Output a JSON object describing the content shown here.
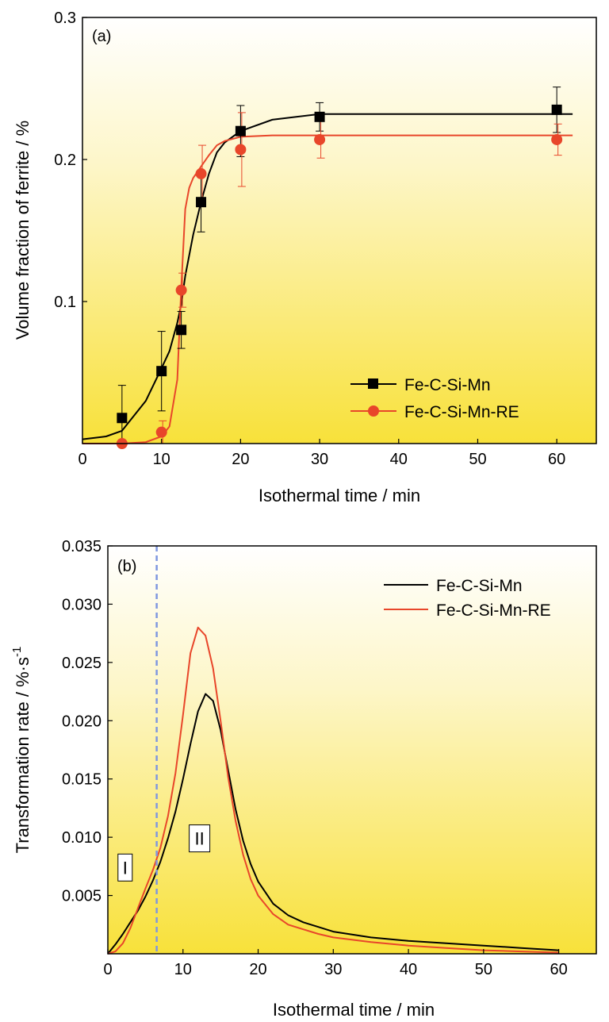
{
  "chart_data": [
    {
      "panel_label": "(a)",
      "type": "scatter",
      "xlabel": "Isothermal time / min",
      "ylabel": "Volume fraction of ferrite / %",
      "xlim": [
        0,
        65
      ],
      "ylim": [
        0,
        0.3
      ],
      "xticks": [
        "0",
        "10",
        "20",
        "30",
        "40",
        "50",
        "60"
      ],
      "yticks": [
        "0.1",
        "0.2",
        "0.3"
      ],
      "ytick_values": [
        0.1,
        0.2,
        0.3
      ],
      "legend_position": "bottom-right",
      "background": "gradient white to yellow",
      "series": [
        {
          "name": "Fe-C-Si-Mn",
          "color": "#000000",
          "marker": "square",
          "points": [
            {
              "x": 5,
              "y": 0.018,
              "err": 0.023
            },
            {
              "x": 10,
              "y": 0.051,
              "err": 0.028
            },
            {
              "x": 12.5,
              "y": 0.08,
              "err": 0.013
            },
            {
              "x": 15,
              "y": 0.17,
              "err": 0.021
            },
            {
              "x": 20,
              "y": 0.22,
              "err": 0.018
            },
            {
              "x": 30,
              "y": 0.23,
              "err": 0.01
            },
            {
              "x": 60,
              "y": 0.235,
              "err": 0.016
            }
          ],
          "fit_curve": {
            "x": [
              0,
              3,
              5,
              8,
              10,
              11,
              12,
              12.5,
              13,
              14,
              15,
              16,
              17,
              18,
              20,
              24,
              30,
              40,
              50,
              62
            ],
            "y": [
              0.003,
              0.005,
              0.009,
              0.03,
              0.053,
              0.065,
              0.085,
              0.098,
              0.118,
              0.147,
              0.17,
              0.19,
              0.205,
              0.212,
              0.22,
              0.228,
              0.232,
              0.232,
              0.232,
              0.232
            ]
          }
        },
        {
          "name": "Fe-C-Si-Mn-RE",
          "color": "#e8462a",
          "marker": "circle",
          "points": [
            {
              "x": 5,
              "y": 0.0,
              "err": 0.0
            },
            {
              "x": 10,
              "y": 0.008,
              "err": 0.008
            },
            {
              "x": 12.5,
              "y": 0.108,
              "err": 0.012
            },
            {
              "x": 15,
              "y": 0.19,
              "err": 0.02
            },
            {
              "x": 20,
              "y": 0.207,
              "err": 0.026
            },
            {
              "x": 30,
              "y": 0.214,
              "err": 0.013
            },
            {
              "x": 60,
              "y": 0.214,
              "err": 0.011
            }
          ],
          "fit_curve": {
            "x": [
              0,
              3,
              5,
              8,
              10,
              11,
              12,
              12.5,
              13,
              13.5,
              14,
              15,
              16,
              17,
              18,
              20,
              24,
              30,
              40,
              50,
              62
            ],
            "y": [
              0.0,
              0.0,
              0.0,
              0.001,
              0.005,
              0.012,
              0.045,
              0.11,
              0.165,
              0.18,
              0.187,
              0.195,
              0.203,
              0.21,
              0.213,
              0.216,
              0.217,
              0.217,
              0.217,
              0.217,
              0.217
            ]
          }
        }
      ]
    },
    {
      "panel_label": "(b)",
      "type": "line",
      "xlabel": "Isothermal time / min",
      "ylabel_main": "Transformation rate / %·s",
      "ylabel_sup": "-1",
      "xlim": [
        0,
        65
      ],
      "ylim": [
        0,
        0.035
      ],
      "xticks": [
        "0",
        "10",
        "20",
        "30",
        "40",
        "50",
        "60"
      ],
      "yticks": [
        "0.005",
        "0.010",
        "0.015",
        "0.020",
        "0.025",
        "0.030",
        "0.035"
      ],
      "ytick_values": [
        0.005,
        0.01,
        0.015,
        0.02,
        0.025,
        0.03,
        0.035
      ],
      "legend_position": "top-right",
      "background": "gradient white to yellow",
      "divider_x": 6.5,
      "divider_color": "#7f97e0",
      "regions": [
        {
          "label": "I",
          "x": 2.3,
          "y": 0.0074
        },
        {
          "label": "II",
          "x": 12.2,
          "y": 0.0099
        }
      ],
      "series": [
        {
          "name": "Fe-C-Si-Mn",
          "color": "#000000",
          "x": [
            0,
            1,
            2,
            3,
            4,
            5,
            6,
            7,
            8,
            9,
            10,
            11,
            12,
            13,
            14,
            15,
            16,
            17,
            18,
            19,
            20,
            22,
            24,
            26,
            28,
            30,
            35,
            40,
            45,
            50,
            55,
            60
          ],
          "y": [
            0.0,
            0.0008,
            0.0017,
            0.0027,
            0.0037,
            0.0049,
            0.0063,
            0.0079,
            0.0099,
            0.0122,
            0.015,
            0.018,
            0.0208,
            0.0223,
            0.0217,
            0.0192,
            0.0158,
            0.0124,
            0.0097,
            0.0077,
            0.0062,
            0.0043,
            0.0033,
            0.0027,
            0.0023,
            0.0019,
            0.0014,
            0.0011,
            0.0009,
            0.0007,
            0.0005,
            0.0003
          ]
        },
        {
          "name": "Fe-C-Si-Mn-RE",
          "color": "#e8462a",
          "x": [
            0,
            1,
            2,
            3,
            4,
            5,
            6,
            7,
            8,
            9,
            10,
            11,
            12,
            13,
            14,
            15,
            16,
            17,
            18,
            19,
            20,
            22,
            24,
            26,
            28,
            30,
            35,
            40,
            45,
            50,
            55,
            60
          ],
          "y": [
            0.0,
            0.0002,
            0.0009,
            0.0022,
            0.0039,
            0.0056,
            0.0072,
            0.0091,
            0.0118,
            0.0155,
            0.0205,
            0.0258,
            0.028,
            0.0273,
            0.0245,
            0.02,
            0.0152,
            0.0114,
            0.0085,
            0.0064,
            0.005,
            0.0034,
            0.0025,
            0.0021,
            0.0017,
            0.0014,
            0.001,
            0.0007,
            0.0005,
            0.0003,
            0.0002,
            0.0001
          ]
        }
      ]
    }
  ]
}
